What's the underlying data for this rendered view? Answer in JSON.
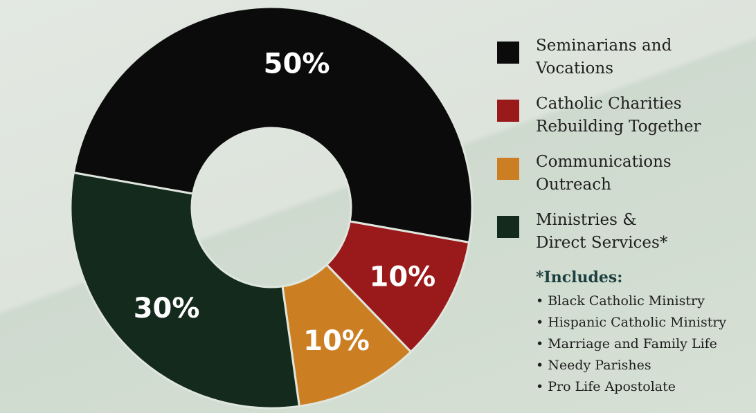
{
  "chart_data": {
    "type": "pie",
    "style": "donut",
    "categories": [
      "Seminarians and\nVocations",
      "Catholic Charities\nRebuilding Together",
      "Communications\nOutreach",
      "Ministries &\nDirect Services*"
    ],
    "values": [
      50,
      10,
      10,
      30
    ],
    "data_labels": [
      "50%",
      "10%",
      "10%",
      "30%"
    ],
    "colors": [
      "#0b0b0b",
      "#9a1a1c",
      "#cc7f22",
      "#142a1d"
    ],
    "legend_position": "right"
  },
  "includes": {
    "title": "*Includes:",
    "bullet": "•",
    "items": [
      "Black Catholic Ministry",
      "Hispanic Catholic Ministry",
      "Marriage and Family Life",
      "Needy Parishes",
      "Pro Life Apostolate"
    ]
  }
}
